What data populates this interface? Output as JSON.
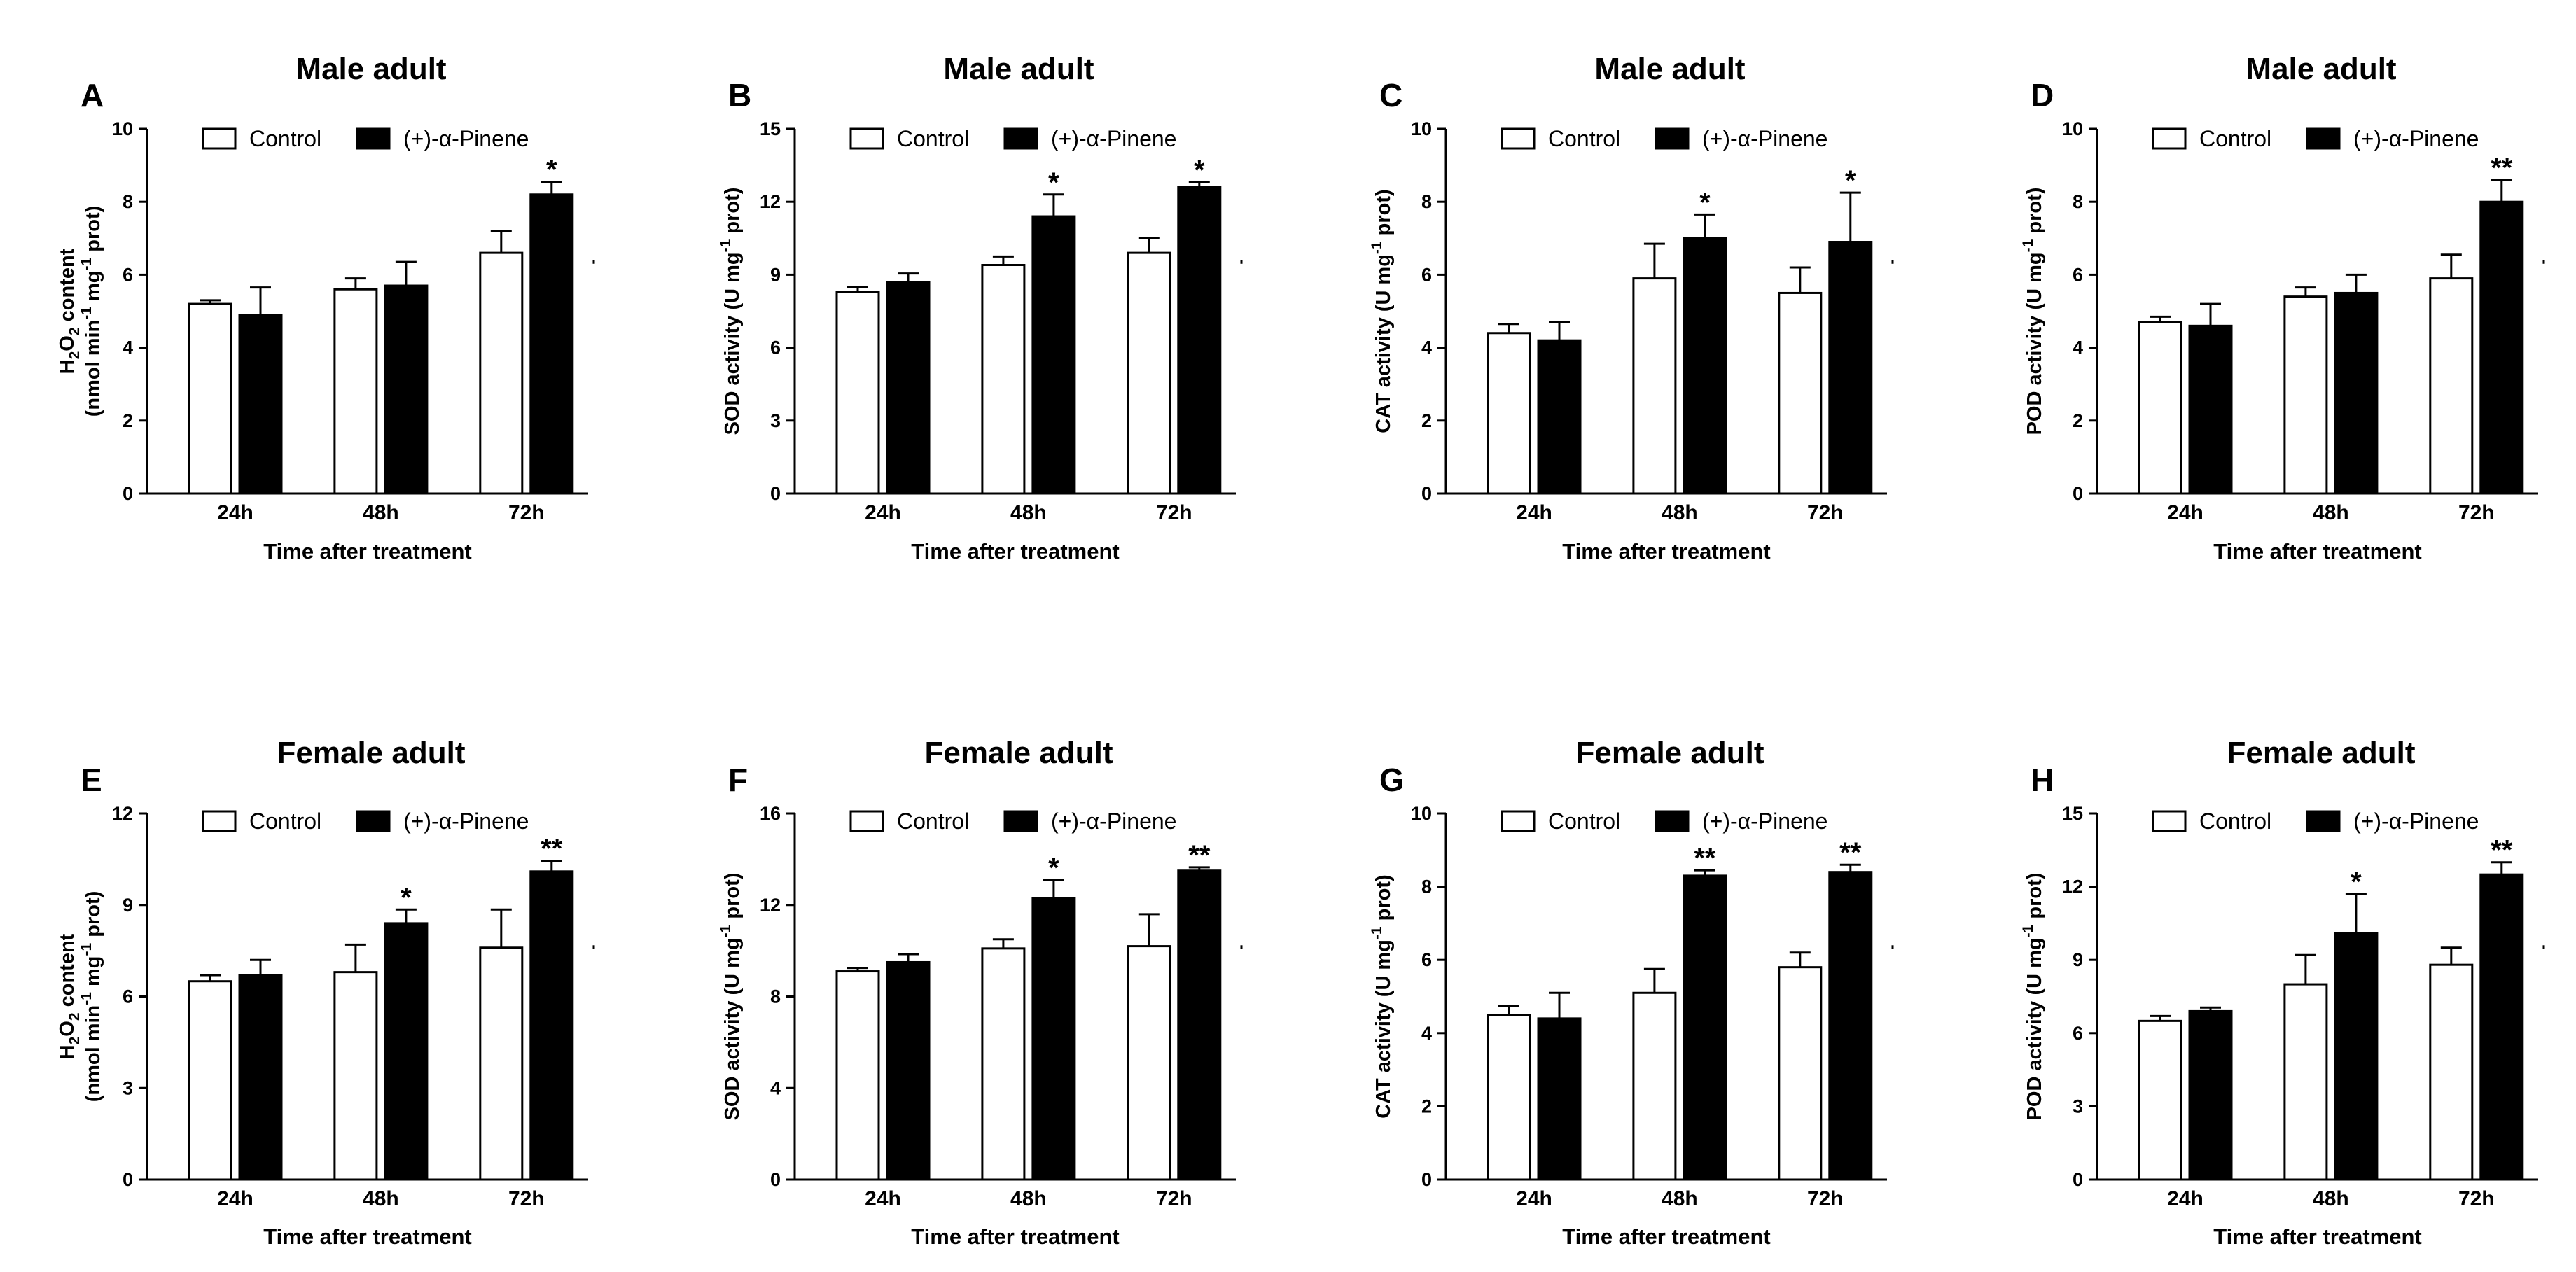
{
  "chart_data": [
    {
      "panel": "A",
      "type": "bar",
      "title": "Male adult",
      "ylabel": "H2O2 content (nmol min-1 mg-1 prot)",
      "xlabel": "Time after treatment",
      "categories": [
        "24h",
        "48h",
        "72h"
      ],
      "ylim": [
        0,
        10
      ],
      "yticks": [
        "0",
        "2",
        "4",
        "6",
        "8",
        "10"
      ],
      "legend": [
        "Control",
        "(+)-α-Pinene"
      ],
      "series": [
        {
          "name": "Control",
          "values": [
            5.2,
            5.6,
            6.6
          ],
          "errors": [
            0.1,
            0.3,
            0.6
          ],
          "sig": [
            "",
            "",
            ""
          ]
        },
        {
          "name": "(+)-α-Pinene",
          "values": [
            4.9,
            5.7,
            8.2
          ],
          "errors": [
            0.75,
            0.65,
            0.35
          ],
          "sig": [
            "",
            "",
            "*"
          ]
        }
      ]
    },
    {
      "panel": "B",
      "type": "bar",
      "title": "Male adult",
      "ylabel": "SOD activity (U mg-1 prot)",
      "xlabel": "Time after treatment",
      "categories": [
        "24h",
        "48h",
        "72h"
      ],
      "ylim": [
        0,
        15
      ],
      "yticks": [
        "0",
        "3",
        "6",
        "9",
        "12",
        "15"
      ],
      "legend": [
        "Control",
        "(+)-α-Pinene"
      ],
      "series": [
        {
          "name": "Control",
          "values": [
            8.3,
            9.4,
            9.9
          ],
          "errors": [
            0.2,
            0.35,
            0.6
          ],
          "sig": [
            "",
            "",
            ""
          ]
        },
        {
          "name": "(+)-α-Pinene",
          "values": [
            8.7,
            11.4,
            12.6
          ],
          "errors": [
            0.35,
            0.9,
            0.2
          ],
          "sig": [
            "",
            "*",
            "*"
          ]
        }
      ]
    },
    {
      "panel": "C",
      "type": "bar",
      "title": "Male adult",
      "ylabel": "CAT activity (U mg-1 prot)",
      "xlabel": "Time after treatment",
      "categories": [
        "24h",
        "48h",
        "72h"
      ],
      "ylim": [
        0,
        10
      ],
      "yticks": [
        "0",
        "2",
        "4",
        "6",
        "8",
        "10"
      ],
      "legend": [
        "Control",
        "(+)-α-Pinene"
      ],
      "series": [
        {
          "name": "Control",
          "values": [
            4.4,
            5.9,
            5.5
          ],
          "errors": [
            0.25,
            0.95,
            0.7
          ],
          "sig": [
            "",
            "",
            ""
          ]
        },
        {
          "name": "(+)-α-Pinene",
          "values": [
            4.2,
            7.0,
            6.9
          ],
          "errors": [
            0.5,
            0.65,
            1.35
          ],
          "sig": [
            "",
            "*",
            "*"
          ]
        }
      ]
    },
    {
      "panel": "D",
      "type": "bar",
      "title": "Male adult",
      "ylabel": "POD activity (U mg-1 prot)",
      "xlabel": "Time after treatment",
      "categories": [
        "24h",
        "48h",
        "72h"
      ],
      "ylim": [
        0,
        10
      ],
      "yticks": [
        "0",
        "2",
        "4",
        "6",
        "8",
        "10"
      ],
      "legend": [
        "Control",
        "(+)-α-Pinene"
      ],
      "series": [
        {
          "name": "Control",
          "values": [
            4.7,
            5.4,
            5.9
          ],
          "errors": [
            0.15,
            0.25,
            0.65
          ],
          "sig": [
            "",
            "",
            ""
          ]
        },
        {
          "name": "(+)-α-Pinene",
          "values": [
            4.6,
            5.5,
            8.0
          ],
          "errors": [
            0.6,
            0.5,
            0.6
          ],
          "sig": [
            "",
            "",
            "**"
          ]
        }
      ]
    },
    {
      "panel": "E",
      "type": "bar",
      "title": "Female adult",
      "ylabel": "H2O2 content (nmol min-1 mg-1 prot)",
      "xlabel": "Time after treatment",
      "categories": [
        "24h",
        "48h",
        "72h"
      ],
      "ylim": [
        0,
        12
      ],
      "yticks": [
        "0",
        "3",
        "6",
        "9",
        "12"
      ],
      "legend": [
        "Control",
        "(+)-α-Pinene"
      ],
      "series": [
        {
          "name": "Control",
          "values": [
            6.5,
            6.8,
            7.6
          ],
          "errors": [
            0.2,
            0.9,
            1.25
          ],
          "sig": [
            "",
            "",
            ""
          ]
        },
        {
          "name": "(+)-α-Pinene",
          "values": [
            6.7,
            8.4,
            10.1
          ],
          "errors": [
            0.5,
            0.45,
            0.35
          ],
          "sig": [
            "",
            "*",
            "**"
          ]
        }
      ]
    },
    {
      "panel": "F",
      "type": "bar",
      "title": "Female adult",
      "ylabel": "SOD activity (U mg-1 prot)",
      "xlabel": "Time after treatment",
      "categories": [
        "24h",
        "48h",
        "72h"
      ],
      "ylim": [
        0,
        16
      ],
      "yticks": [
        "0",
        "4",
        "8",
        "12",
        "16"
      ],
      "legend": [
        "Control",
        "(+)-α-Pinene"
      ],
      "series": [
        {
          "name": "Control",
          "values": [
            9.1,
            10.1,
            10.2
          ],
          "errors": [
            0.15,
            0.4,
            1.4
          ],
          "sig": [
            "",
            "",
            ""
          ]
        },
        {
          "name": "(+)-α-Pinene",
          "values": [
            9.5,
            12.3,
            13.5
          ],
          "errors": [
            0.35,
            0.8,
            0.15
          ],
          "sig": [
            "",
            "*",
            "**"
          ]
        }
      ]
    },
    {
      "panel": "G",
      "type": "bar",
      "title": "Female adult",
      "ylabel": "CAT activity (U mg-1 prot)",
      "xlabel": "Time after treatment",
      "categories": [
        "24h",
        "48h",
        "72h"
      ],
      "ylim": [
        0,
        10
      ],
      "yticks": [
        "0",
        "2",
        "4",
        "6",
        "8",
        "10"
      ],
      "legend": [
        "Control",
        "(+)-α-Pinene"
      ],
      "series": [
        {
          "name": "Control",
          "values": [
            4.5,
            5.1,
            5.8
          ],
          "errors": [
            0.25,
            0.65,
            0.4
          ],
          "sig": [
            "",
            "",
            ""
          ]
        },
        {
          "name": "(+)-α-Pinene",
          "values": [
            4.4,
            8.3,
            8.4
          ],
          "errors": [
            0.7,
            0.15,
            0.2
          ],
          "sig": [
            "",
            "**",
            "**"
          ]
        }
      ]
    },
    {
      "panel": "H",
      "type": "bar",
      "title": "Female adult",
      "ylabel": "POD activity (U mg-1 prot)",
      "xlabel": "Time after treatment",
      "categories": [
        "24h",
        "48h",
        "72h"
      ],
      "ylim": [
        0,
        15
      ],
      "yticks": [
        "0",
        "3",
        "6",
        "9",
        "12",
        "15"
      ],
      "legend": [
        "Control",
        "(+)-α-Pinene"
      ],
      "series": [
        {
          "name": "Control",
          "values": [
            6.5,
            8.0,
            8.8
          ],
          "errors": [
            0.2,
            1.2,
            0.7
          ],
          "sig": [
            "",
            "",
            ""
          ]
        },
        {
          "name": "(+)-α-Pinene",
          "values": [
            6.9,
            10.1,
            12.5
          ],
          "errors": [
            0.15,
            1.6,
            0.5
          ],
          "sig": [
            "",
            "*",
            "**"
          ]
        }
      ]
    }
  ]
}
